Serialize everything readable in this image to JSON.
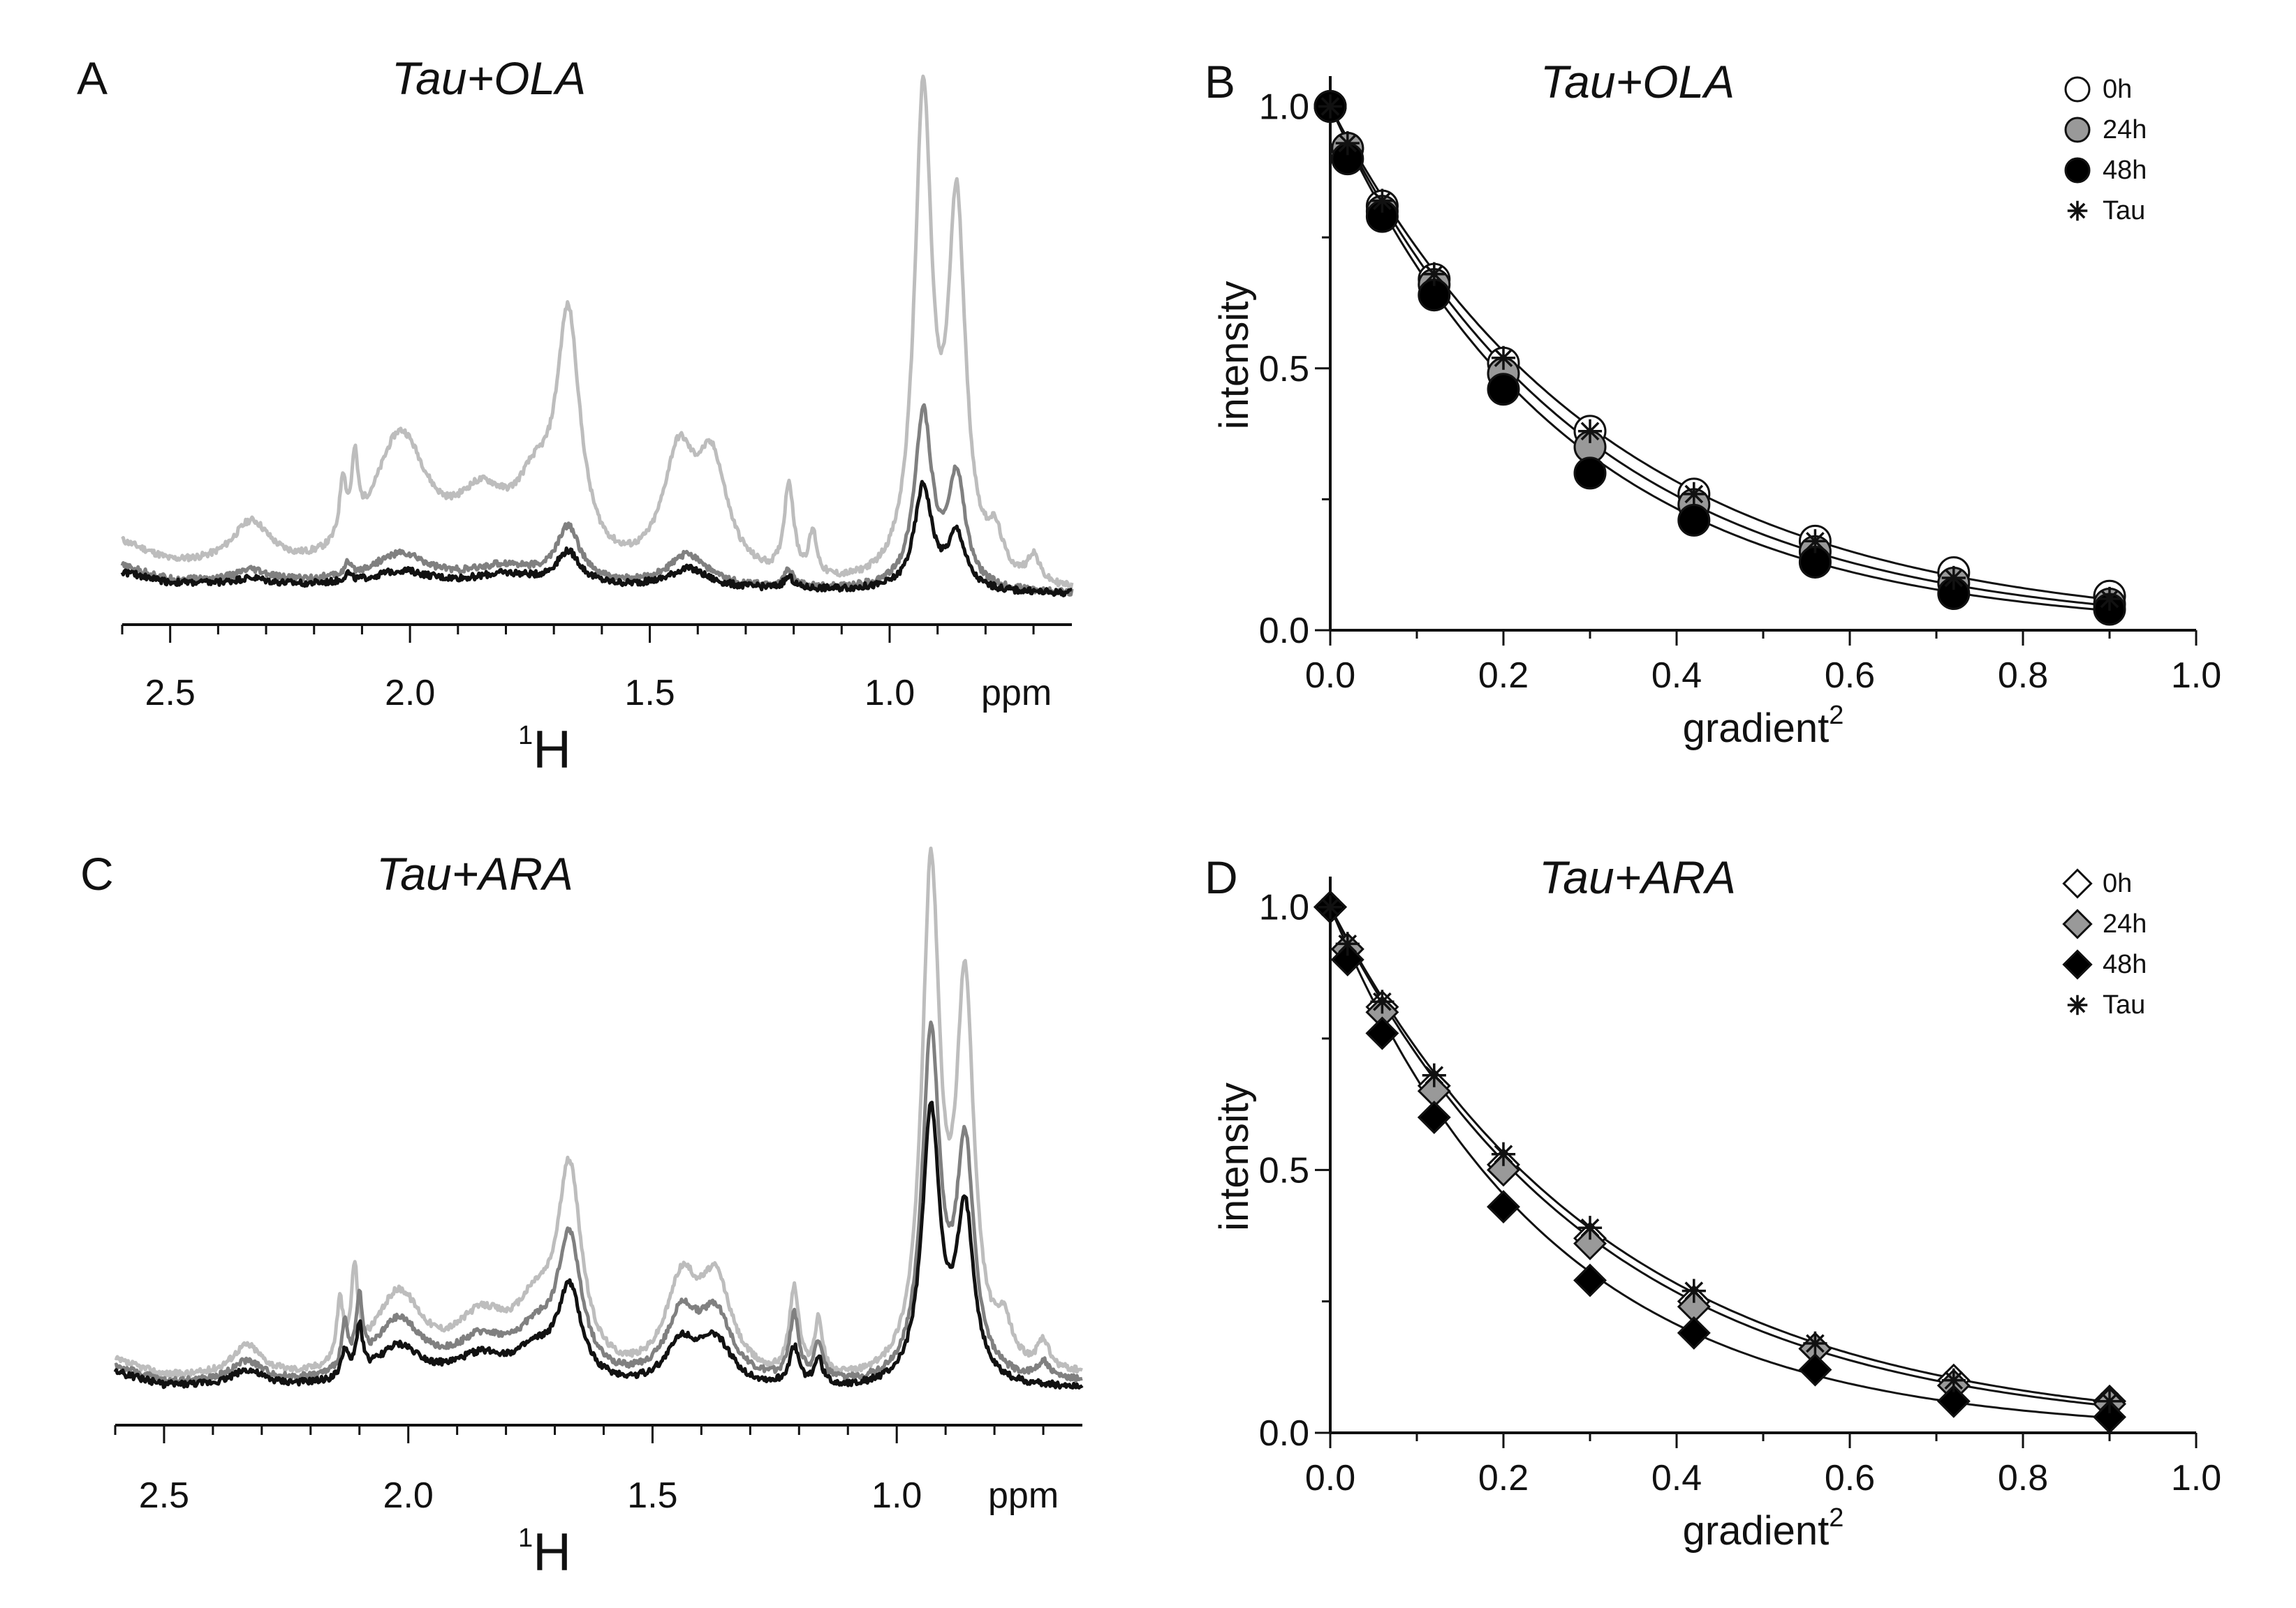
{
  "figure": {
    "panels": [
      "A",
      "B",
      "C",
      "D"
    ]
  },
  "chart_data": [
    {
      "panel": "A",
      "type": "line",
      "title": "Tau+OLA",
      "xlabel": "1H",
      "xlabel_sup": "1",
      "xlabel_main": "H",
      "x_unit": "ppm",
      "xlim": [
        2.6,
        0.62
      ],
      "ylim": [
        0,
        1.0
      ],
      "x_ticks": [
        2.5,
        2.0,
        1.5,
        1.0
      ],
      "x_tick_labels": [
        "2.5",
        "2.0",
        "1.5",
        "1.0"
      ],
      "series": [
        {
          "name": "0h",
          "color": "#bdbdbd",
          "baseline": [
            [
              2.6,
              0.14
            ],
            [
              2.5,
              0.1
            ],
            [
              2.3,
              0.08
            ],
            [
              2.0,
              0.07
            ],
            [
              1.5,
              0.06
            ],
            [
              1.0,
              0.05
            ],
            [
              0.62,
              0.05
            ]
          ],
          "peaks": [
            [
              2.33,
              0.085,
              0.05
            ],
            [
              2.14,
              0.11,
              0.008
            ],
            [
              2.115,
              0.13,
              0.008
            ],
            [
              2.02,
              0.25,
              0.07
            ],
            [
              1.85,
              0.12,
              0.07
            ],
            [
              1.74,
              0.12,
              0.05
            ],
            [
              1.67,
              0.44,
              0.03
            ],
            [
              1.44,
              0.21,
              0.04
            ],
            [
              1.37,
              0.2,
              0.04
            ],
            [
              1.21,
              0.17,
              0.012
            ],
            [
              1.16,
              0.08,
              0.01
            ],
            [
              0.93,
              0.88,
              0.022
            ],
            [
              0.86,
              0.67,
              0.022
            ],
            [
              0.78,
              0.07,
              0.02
            ],
            [
              0.7,
              0.05,
              0.015
            ]
          ]
        },
        {
          "name": "24h",
          "color": "#808080",
          "baseline": [
            [
              2.6,
              0.1
            ],
            [
              2.5,
              0.075
            ],
            [
              2.3,
              0.07
            ],
            [
              2.0,
              0.07
            ],
            [
              1.5,
              0.06
            ],
            [
              1.0,
              0.055
            ],
            [
              0.62,
              0.05
            ]
          ],
          "peaks": [
            [
              2.33,
              0.02,
              0.04
            ],
            [
              2.13,
              0.02,
              0.008
            ],
            [
              2.02,
              0.05,
              0.07
            ],
            [
              1.8,
              0.03,
              0.08
            ],
            [
              1.67,
              0.1,
              0.03
            ],
            [
              1.42,
              0.06,
              0.05
            ],
            [
              1.21,
              0.03,
              0.012
            ],
            [
              0.93,
              0.32,
              0.022
            ],
            [
              0.86,
              0.2,
              0.022
            ]
          ]
        },
        {
          "name": "48h",
          "color": "#111111",
          "baseline": [
            [
              2.6,
              0.09
            ],
            [
              2.5,
              0.07
            ],
            [
              2.3,
              0.065
            ],
            [
              2.0,
              0.065
            ],
            [
              1.5,
              0.06
            ],
            [
              1.0,
              0.055
            ],
            [
              0.62,
              0.05
            ]
          ],
          "peaks": [
            [
              2.33,
              0.012,
              0.04
            ],
            [
              2.13,
              0.015,
              0.008
            ],
            [
              2.02,
              0.025,
              0.07
            ],
            [
              1.8,
              0.02,
              0.08
            ],
            [
              1.67,
              0.06,
              0.03
            ],
            [
              1.42,
              0.035,
              0.05
            ],
            [
              1.21,
              0.02,
              0.012
            ],
            [
              0.93,
              0.19,
              0.022
            ],
            [
              0.86,
              0.1,
              0.022
            ]
          ]
        }
      ]
    },
    {
      "panel": "B",
      "type": "scatter",
      "title": "Tau+OLA",
      "xlabel": "gradient2",
      "xlabel_main": "gradient",
      "xlabel_sup": "2",
      "ylabel": "intensity",
      "xlim": [
        0,
        1.0
      ],
      "ylim": [
        0,
        1.05
      ],
      "x_ticks": [
        0.0,
        0.2,
        0.4,
        0.6,
        0.8,
        1.0
      ],
      "x_tick_labels": [
        "0.0",
        "0.2",
        "0.4",
        "0.6",
        "0.8",
        "1.0"
      ],
      "y_ticks": [
        0.0,
        0.5,
        1.0
      ],
      "y_tick_labels": [
        "0.0",
        "0.5",
        "1.0"
      ],
      "legend": "top-right",
      "x": [
        0.0,
        0.02,
        0.06,
        0.12,
        0.2,
        0.3,
        0.42,
        0.56,
        0.72,
        0.9
      ],
      "series": [
        {
          "name": "0h",
          "marker": "circle",
          "fill": "#ffffff",
          "values": [
            1.0,
            0.92,
            0.81,
            0.67,
            0.51,
            0.38,
            0.26,
            0.17,
            0.11,
            0.065
          ]
        },
        {
          "name": "24h",
          "marker": "circle",
          "fill": "#999999",
          "values": [
            1.0,
            0.92,
            0.8,
            0.66,
            0.49,
            0.35,
            0.24,
            0.15,
            0.09,
            0.05
          ]
        },
        {
          "name": "48h",
          "marker": "circle",
          "fill": "#000000",
          "values": [
            1.0,
            0.9,
            0.79,
            0.64,
            0.46,
            0.3,
            0.21,
            0.13,
            0.07,
            0.04
          ]
        },
        {
          "name": "Tau",
          "marker": "star",
          "fill": "#000000",
          "values": [
            1.0,
            0.93,
            0.82,
            0.68,
            0.52,
            0.38,
            0.26,
            0.17,
            0.1,
            0.06
          ]
        }
      ],
      "fit_curves": [
        {
          "name": "fit-upper",
          "decay_rate": 3.15
        },
        {
          "name": "fit-middle",
          "decay_rate": 3.4
        },
        {
          "name": "fit-lower",
          "decay_rate": 3.65
        }
      ]
    },
    {
      "panel": "C",
      "type": "line",
      "title": "Tau+ARA",
      "xlabel": "1H",
      "xlabel_sup": "1",
      "xlabel_main": "H",
      "x_unit": "ppm",
      "xlim": [
        2.6,
        0.62
      ],
      "ylim": [
        0,
        1.0
      ],
      "x_ticks": [
        2.5,
        2.0,
        1.5,
        1.0
      ],
      "x_tick_labels": [
        "2.5",
        "2.0",
        "1.5",
        "1.0"
      ],
      "series": [
        {
          "name": "0h",
          "color": "#bdbdbd",
          "baseline": [
            [
              2.6,
              0.11
            ],
            [
              2.5,
              0.08
            ],
            [
              2.3,
              0.07
            ],
            [
              2.0,
              0.07
            ],
            [
              1.5,
              0.06
            ],
            [
              1.0,
              0.06
            ],
            [
              0.62,
              0.08
            ]
          ],
          "peaks": [
            [
              2.33,
              0.06,
              0.04
            ],
            [
              2.14,
              0.11,
              0.008
            ],
            [
              2.11,
              0.16,
              0.008
            ],
            [
              2.02,
              0.15,
              0.06
            ],
            [
              1.85,
              0.1,
              0.07
            ],
            [
              1.74,
              0.1,
              0.05
            ],
            [
              1.67,
              0.36,
              0.03
            ],
            [
              1.44,
              0.17,
              0.04
            ],
            [
              1.37,
              0.17,
              0.04
            ],
            [
              1.21,
              0.16,
              0.012
            ],
            [
              1.16,
              0.1,
              0.01
            ],
            [
              0.93,
              0.92,
              0.022
            ],
            [
              0.86,
              0.69,
              0.022
            ],
            [
              0.78,
              0.07,
              0.02
            ],
            [
              0.7,
              0.05,
              0.015
            ]
          ]
        },
        {
          "name": "24h",
          "color": "#808080",
          "baseline": [
            [
              2.6,
              0.1
            ],
            [
              2.5,
              0.07
            ],
            [
              2.3,
              0.065
            ],
            [
              2.0,
              0.065
            ],
            [
              1.5,
              0.06
            ],
            [
              1.0,
              0.06
            ],
            [
              0.62,
              0.07
            ]
          ],
          "peaks": [
            [
              2.33,
              0.04,
              0.04
            ],
            [
              2.13,
              0.08,
              0.008
            ],
            [
              2.1,
              0.12,
              0.008
            ],
            [
              2.02,
              0.11,
              0.06
            ],
            [
              1.85,
              0.07,
              0.07
            ],
            [
              1.74,
              0.07,
              0.05
            ],
            [
              1.67,
              0.25,
              0.03
            ],
            [
              1.44,
              0.12,
              0.04
            ],
            [
              1.37,
              0.12,
              0.04
            ],
            [
              1.21,
              0.12,
              0.012
            ],
            [
              1.16,
              0.07,
              0.01
            ],
            [
              0.93,
              0.63,
              0.022
            ],
            [
              0.86,
              0.42,
              0.022
            ],
            [
              0.7,
              0.03,
              0.015
            ]
          ]
        },
        {
          "name": "48h",
          "color": "#111111",
          "baseline": [
            [
              2.6,
              0.09
            ],
            [
              2.5,
              0.065
            ],
            [
              2.3,
              0.06
            ],
            [
              2.0,
              0.06
            ],
            [
              1.5,
              0.055
            ],
            [
              1.0,
              0.055
            ],
            [
              0.62,
              0.06
            ]
          ],
          "peaks": [
            [
              2.33,
              0.03,
              0.04
            ],
            [
              2.13,
              0.05,
              0.008
            ],
            [
              2.1,
              0.09,
              0.008
            ],
            [
              2.02,
              0.07,
              0.06
            ],
            [
              1.85,
              0.05,
              0.07
            ],
            [
              1.74,
              0.05,
              0.05
            ],
            [
              1.67,
              0.17,
              0.03
            ],
            [
              1.44,
              0.08,
              0.04
            ],
            [
              1.37,
              0.08,
              0.04
            ],
            [
              1.21,
              0.07,
              0.012
            ],
            [
              1.16,
              0.05,
              0.01
            ],
            [
              0.93,
              0.5,
              0.022
            ],
            [
              0.86,
              0.31,
              0.022
            ]
          ]
        }
      ]
    },
    {
      "panel": "D",
      "type": "scatter",
      "title": "Tau+ARA",
      "xlabel": "gradient2",
      "xlabel_main": "gradient",
      "xlabel_sup": "2",
      "ylabel": "intensity",
      "xlim": [
        0,
        1.0
      ],
      "ylim": [
        0,
        1.05
      ],
      "x_ticks": [
        0.0,
        0.2,
        0.4,
        0.6,
        0.8,
        1.0
      ],
      "x_tick_labels": [
        "0.0",
        "0.2",
        "0.4",
        "0.6",
        "0.8",
        "1.0"
      ],
      "y_ticks": [
        0.0,
        0.5,
        1.0
      ],
      "y_tick_labels": [
        "0.0",
        "0.5",
        "1.0"
      ],
      "legend": "top-right",
      "x": [
        0.0,
        0.02,
        0.06,
        0.12,
        0.2,
        0.3,
        0.42,
        0.56,
        0.72,
        0.9
      ],
      "series": [
        {
          "name": "0h",
          "marker": "diamond",
          "fill": "#ffffff",
          "values": [
            1.0,
            0.92,
            0.81,
            0.66,
            0.51,
            0.37,
            0.25,
            0.16,
            0.1,
            0.06
          ]
        },
        {
          "name": "24h",
          "marker": "diamond",
          "fill": "#999999",
          "values": [
            1.0,
            0.92,
            0.8,
            0.65,
            0.5,
            0.36,
            0.24,
            0.16,
            0.09,
            0.055
          ]
        },
        {
          "name": "48h",
          "marker": "diamond",
          "fill": "#000000",
          "values": [
            1.0,
            0.9,
            0.76,
            0.6,
            0.43,
            0.29,
            0.19,
            0.12,
            0.06,
            0.03
          ]
        },
        {
          "name": "Tau",
          "marker": "star",
          "fill": "#000000",
          "values": [
            1.0,
            0.93,
            0.82,
            0.68,
            0.53,
            0.39,
            0.27,
            0.17,
            0.1,
            0.06
          ]
        }
      ],
      "fit_curves": [
        {
          "name": "fit-upper",
          "decay_rate": 3.15
        },
        {
          "name": "fit-middle",
          "decay_rate": 3.3
        },
        {
          "name": "fit-lower",
          "decay_rate": 3.95
        }
      ]
    }
  ]
}
